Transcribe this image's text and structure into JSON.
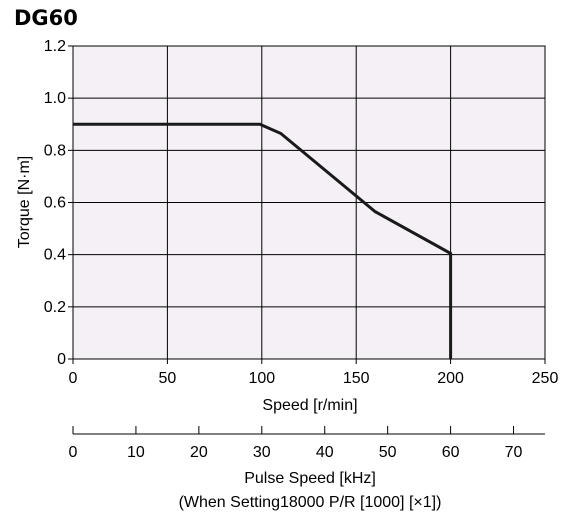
{
  "chart_data": {
    "type": "line",
    "title": "DG60",
    "xlabel": "Speed [r/min]",
    "ylabel": "Torque [N·m]",
    "xlim": [
      0,
      250
    ],
    "ylim": [
      0,
      1.2
    ],
    "x_ticks": [
      "0",
      "50",
      "100",
      "150",
      "200",
      "250"
    ],
    "y_ticks": [
      "0",
      "0.2",
      "0.4",
      "0.6",
      "0.8",
      "1.0",
      "1.2"
    ],
    "grid": true,
    "plot_background": "#f5eff6",
    "line_color": "#1a1a1a",
    "series": [
      {
        "x": [
          0,
          99,
          110,
          160,
          200,
          200
        ],
        "y": [
          0.9,
          0.9,
          0.865,
          0.565,
          0.405,
          0
        ]
      }
    ],
    "secondary_axis": {
      "label_line1": "Pulse Speed [kHz]",
      "label_line2": "(When Setting18000 P/R [1000] [×1])",
      "xlim": [
        0,
        75
      ],
      "ticks": [
        "0",
        "10",
        "20",
        "30",
        "40",
        "50",
        "60",
        "70"
      ]
    }
  }
}
